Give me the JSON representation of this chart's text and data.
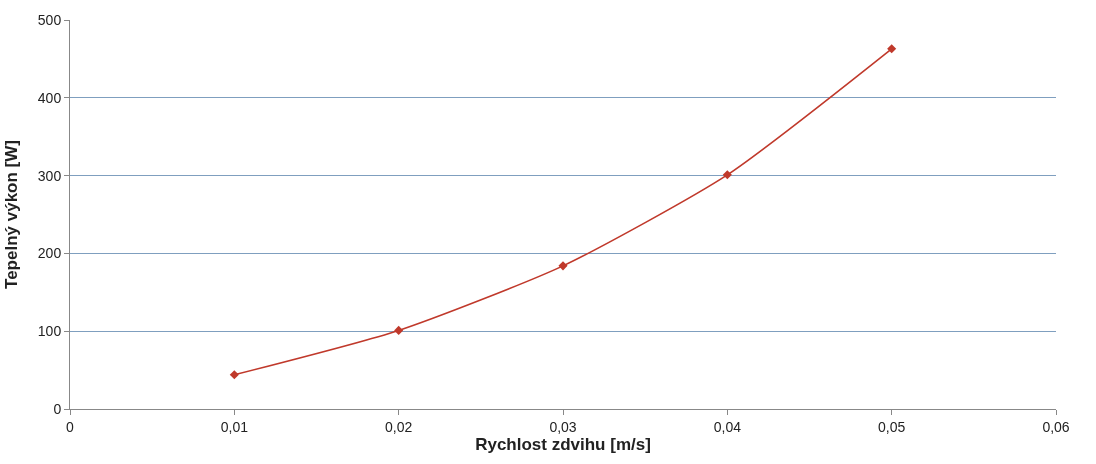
{
  "chart_data": {
    "type": "line",
    "xlabel": "Rychlost zdvihu [m/s]",
    "ylabel": "Tepelný výkon [W]",
    "x": [
      0.01,
      0.02,
      0.03,
      0.04,
      0.05
    ],
    "series": [
      {
        "color": "#c0392b",
        "values": [
          44,
          101,
          184,
          301,
          463
        ]
      }
    ],
    "xlim": [
      0,
      0.06
    ],
    "xticks": [
      0,
      {
        "value": 0.01,
        "label": "0,01"
      },
      {
        "value": 0.02,
        "label": "0,02"
      },
      {
        "value": 0.03,
        "label": "0,03"
      },
      {
        "value": 0.04,
        "label": "0,04"
      },
      {
        "value": 0.05,
        "label": "0,05"
      },
      {
        "value": 0.06,
        "label": "0,06"
      }
    ],
    "ylim": [
      0,
      500
    ],
    "yticks": [
      0,
      100,
      200,
      300,
      400,
      500
    ],
    "grid": "y",
    "marker": "diamond",
    "line_style": "solid"
  }
}
